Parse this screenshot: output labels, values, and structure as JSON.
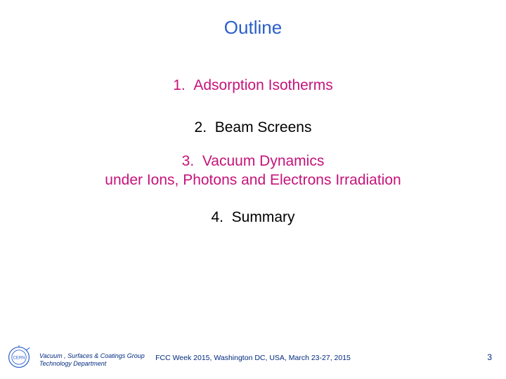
{
  "colors": {
    "title": "#2a5fc9",
    "highlight": "#c5137a",
    "body": "#000000",
    "footer": "#002a7f",
    "logo_ring": "#2a5fc9",
    "logo_bg": "#ffffff"
  },
  "title": "Outline",
  "items": [
    {
      "num": "1.",
      "text": "Adsorption Isotherms",
      "highlighted": true
    },
    {
      "num": "2.",
      "text": "Beam Screens",
      "highlighted": false
    },
    {
      "num": "3.",
      "text": "Vacuum Dynamics\nunder Ions, Photons and Electrons Irradiation",
      "highlighted": true
    },
    {
      "num": "4.",
      "text": "Summary",
      "highlighted": false
    }
  ],
  "footer": {
    "group_line1": "Vacuum , Surfaces & Coatings Group",
    "group_line2": "Technology Department",
    "conference": "FCC Week 2015, Washington DC, USA, March 23-27, 2015",
    "page": "3",
    "logo_text": "CERN"
  },
  "typography": {
    "title_fontsize": 26,
    "item_fontsize": 21,
    "footer_group_fontsize": 9,
    "footer_conf_fontsize": 10.5,
    "pagenum_fontsize": 12
  }
}
